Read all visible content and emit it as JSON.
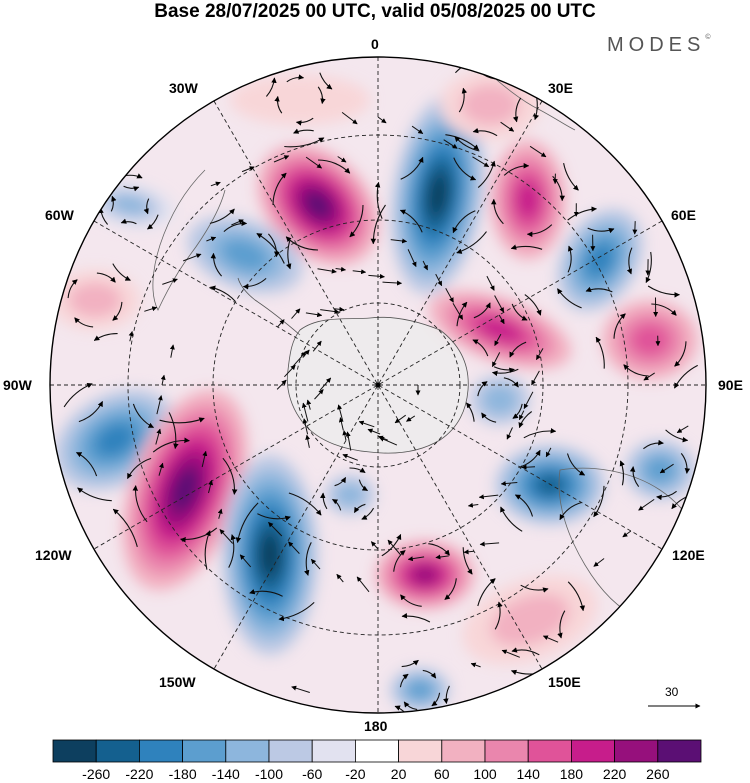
{
  "header": {
    "title": "Base 28/07/2025 00 UTC, valid 05/08/2025 00 UTC",
    "brand": "MODES",
    "brand_mark": "©"
  },
  "longitude_labels": {
    "lon_0": "0",
    "lon_30e": "30E",
    "lon_60e": "60E",
    "lon_90e": "90E",
    "lon_120e": "120E",
    "lon_150e": "150E",
    "lon_180": "180",
    "lon_150w": "150W",
    "lon_120w": "120W",
    "lon_90w": "90W",
    "lon_60w": "60W",
    "lon_30w": "30W"
  },
  "reference_vector": {
    "label": "30"
  },
  "colorbar": {
    "colors": [
      "#0d3f5f",
      "#14608f",
      "#2f82bd",
      "#5c9ecf",
      "#8db6dd",
      "#bcc9e4",
      "#e2e2f0",
      "#ffffff",
      "#f8d6d8",
      "#f2b1c1",
      "#ea86ad",
      "#e05399",
      "#c71d8b",
      "#96107c",
      "#5b0f74"
    ],
    "tick_labels": [
      "-260",
      "-220",
      "-180",
      "-140",
      "-100",
      "-60",
      "-20",
      "20",
      "60",
      "100",
      "140",
      "180",
      "220",
      "260"
    ]
  },
  "anomaly_centers": [
    {
      "sign": "negative",
      "color": "#0d3f5f",
      "value": -260
    },
    {
      "sign": "negative",
      "color": "#14608f",
      "value": -220
    },
    {
      "sign": "positive",
      "color": "#5b0f74",
      "value": 260
    },
    {
      "sign": "positive",
      "color": "#96107c",
      "value": 220
    },
    {
      "sign": "positive",
      "color": "#c71d8b",
      "value": 180
    },
    {
      "sign": "positive",
      "color": "#e05399",
      "value": 140
    }
  ]
}
